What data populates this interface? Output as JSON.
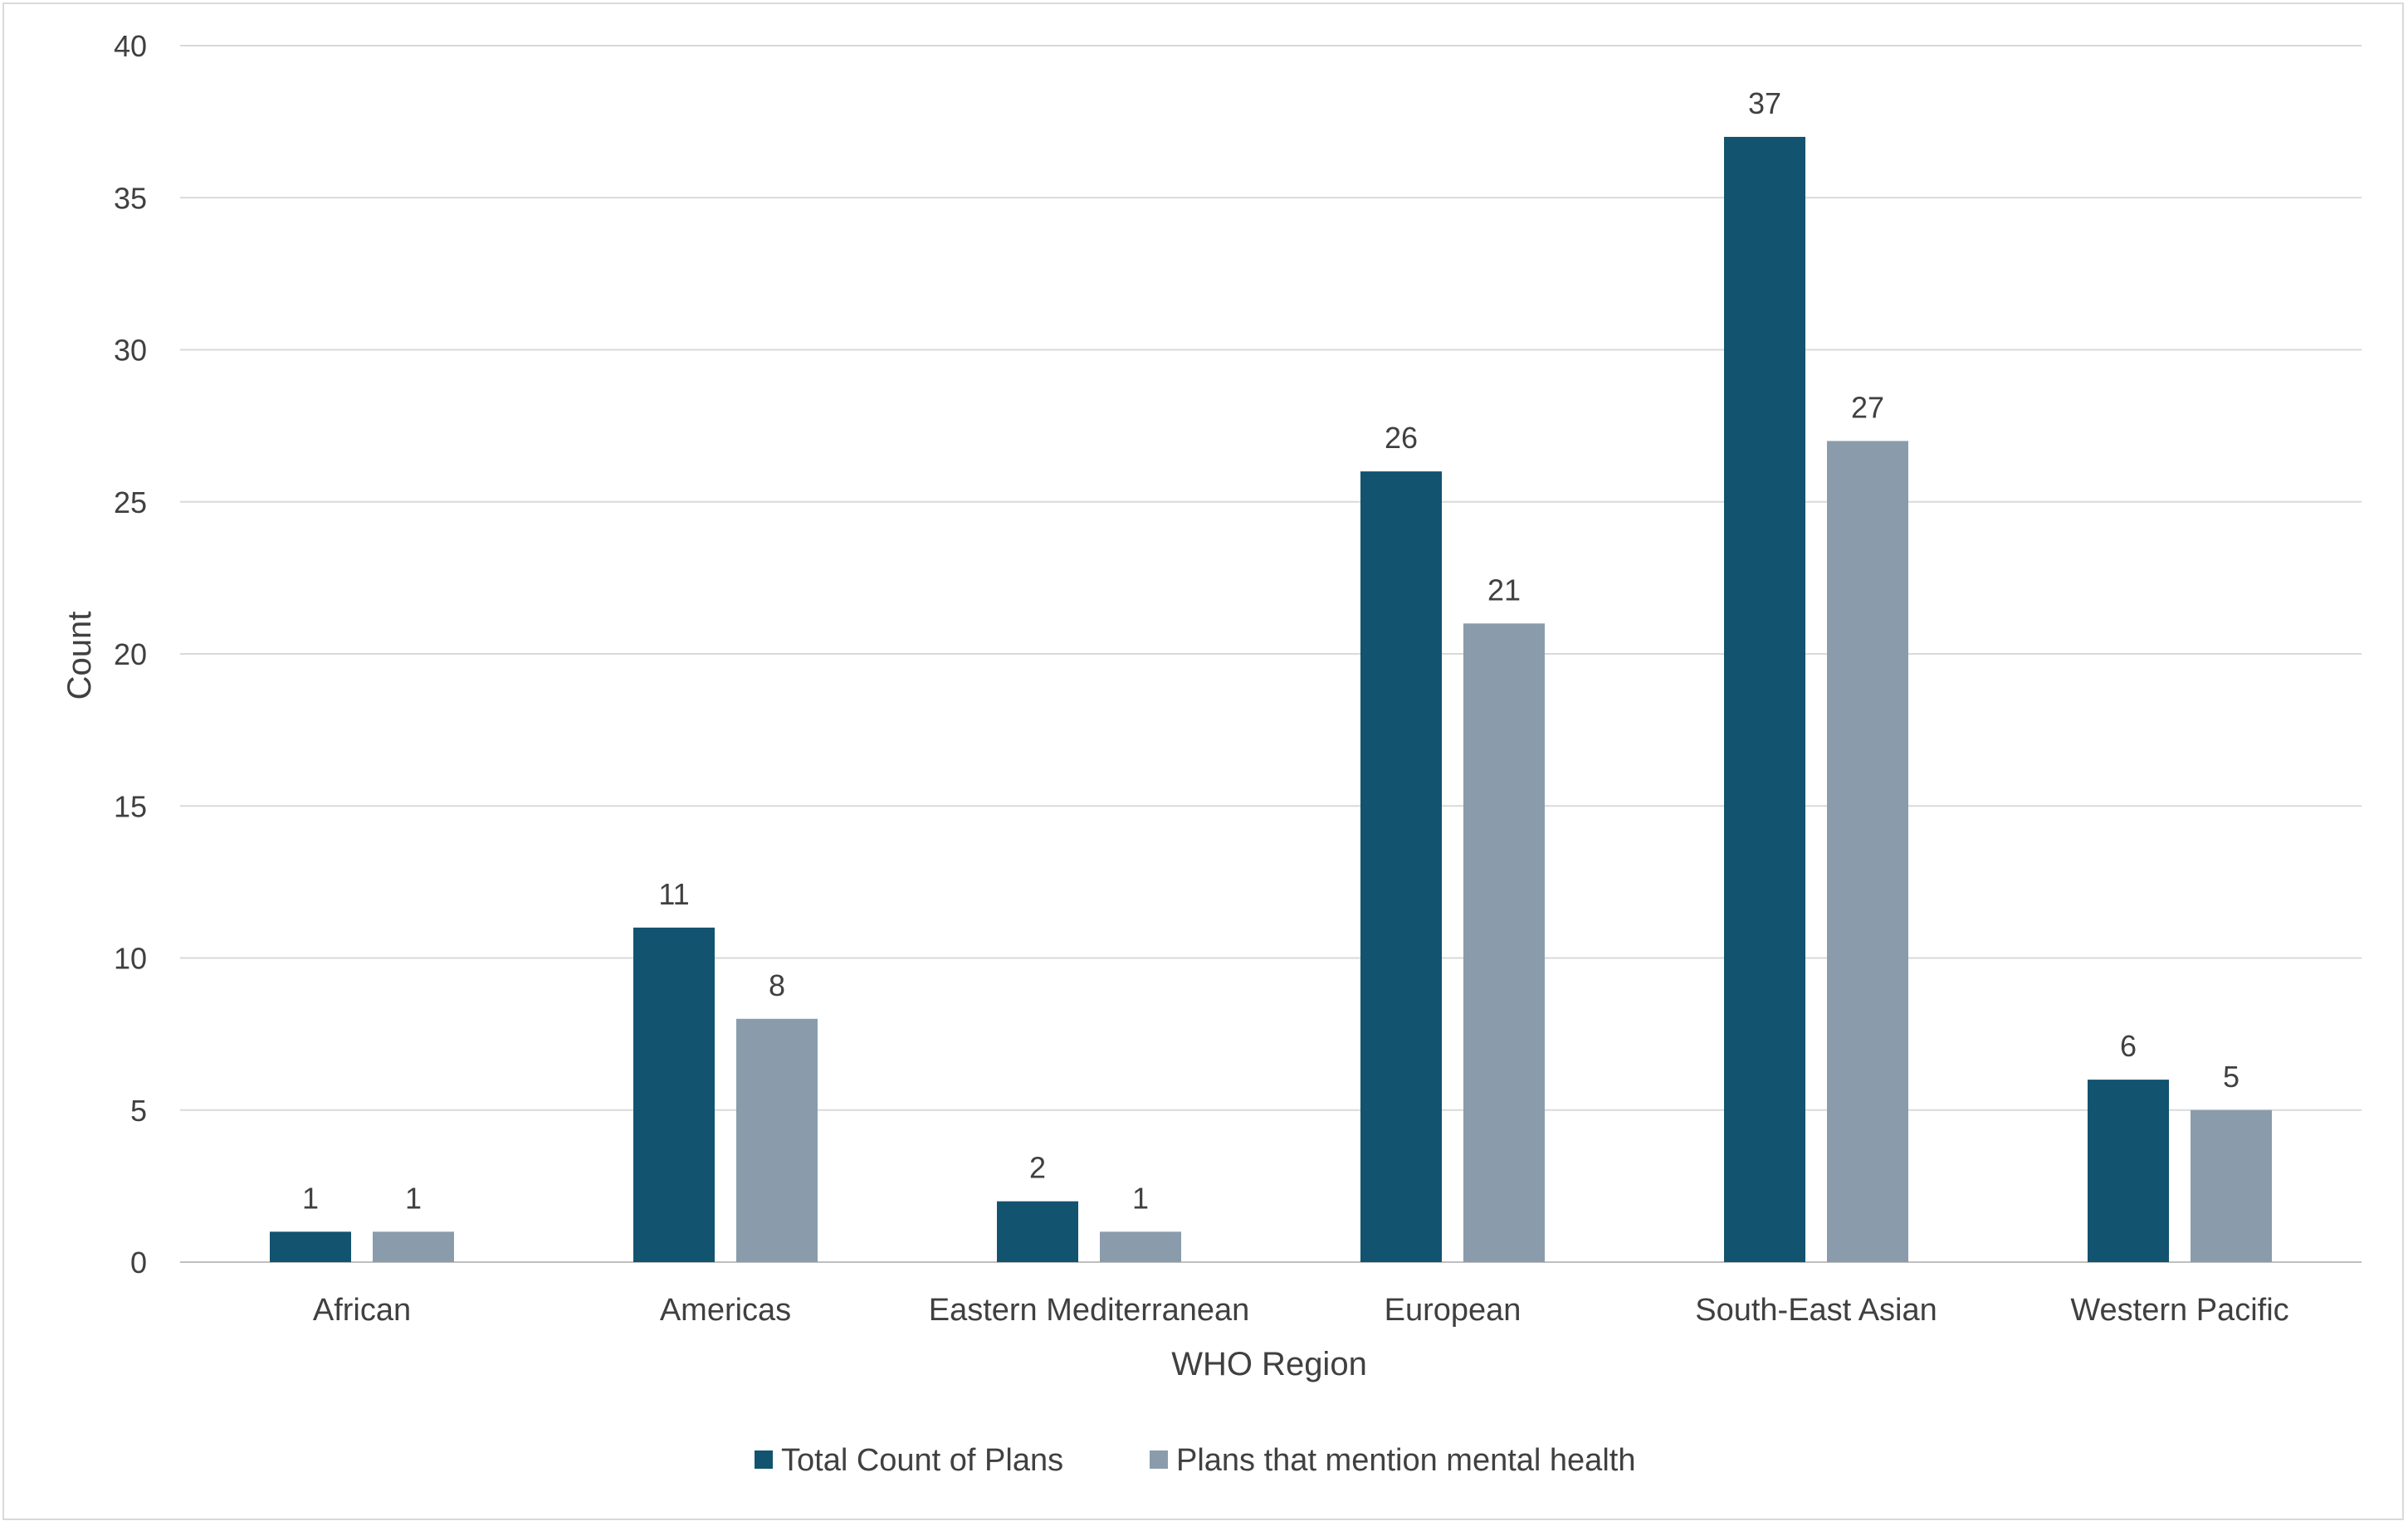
{
  "chart_data": {
    "type": "bar",
    "title": "",
    "xlabel": "WHO Region",
    "ylabel": "Count",
    "ylim": [
      0,
      40
    ],
    "yticks": [
      0,
      5,
      10,
      15,
      20,
      25,
      30,
      35,
      40
    ],
    "grid": true,
    "legend_position": "bottom",
    "categories": [
      "African",
      "Americas",
      "Eastern Mediterranean",
      "European",
      "South-East Asian",
      "Western Pacific"
    ],
    "series": [
      {
        "name": "Total Count of Plans",
        "color": "#12536f",
        "values": [
          1,
          11,
          2,
          26,
          37,
          6
        ]
      },
      {
        "name": "Plans that mention mental health",
        "color": "#8a9cab",
        "values": [
          1,
          8,
          1,
          21,
          27,
          5
        ]
      }
    ]
  }
}
